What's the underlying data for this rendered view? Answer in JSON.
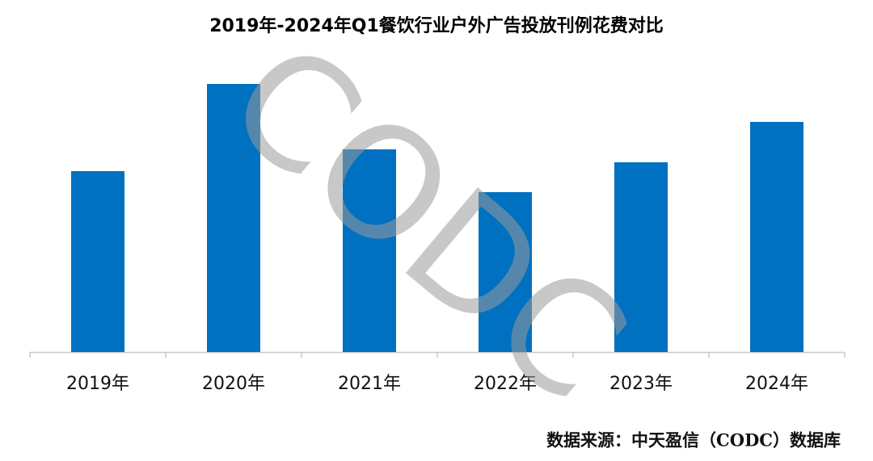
{
  "chart_data": {
    "type": "bar",
    "title": "2019年-2024年Q1餐饮行业户外广告投放刊例花费对比",
    "categories": [
      "2019年",
      "2020年",
      "2021年",
      "2022年",
      "2023年",
      "2024年"
    ],
    "values": [
      224,
      332,
      251,
      198,
      235,
      285
    ],
    "color": "#0070c0",
    "ylim": [
      0,
      360
    ],
    "watermark": "CODC",
    "source": "数据来源：中天盈信（CODC）数据库"
  }
}
